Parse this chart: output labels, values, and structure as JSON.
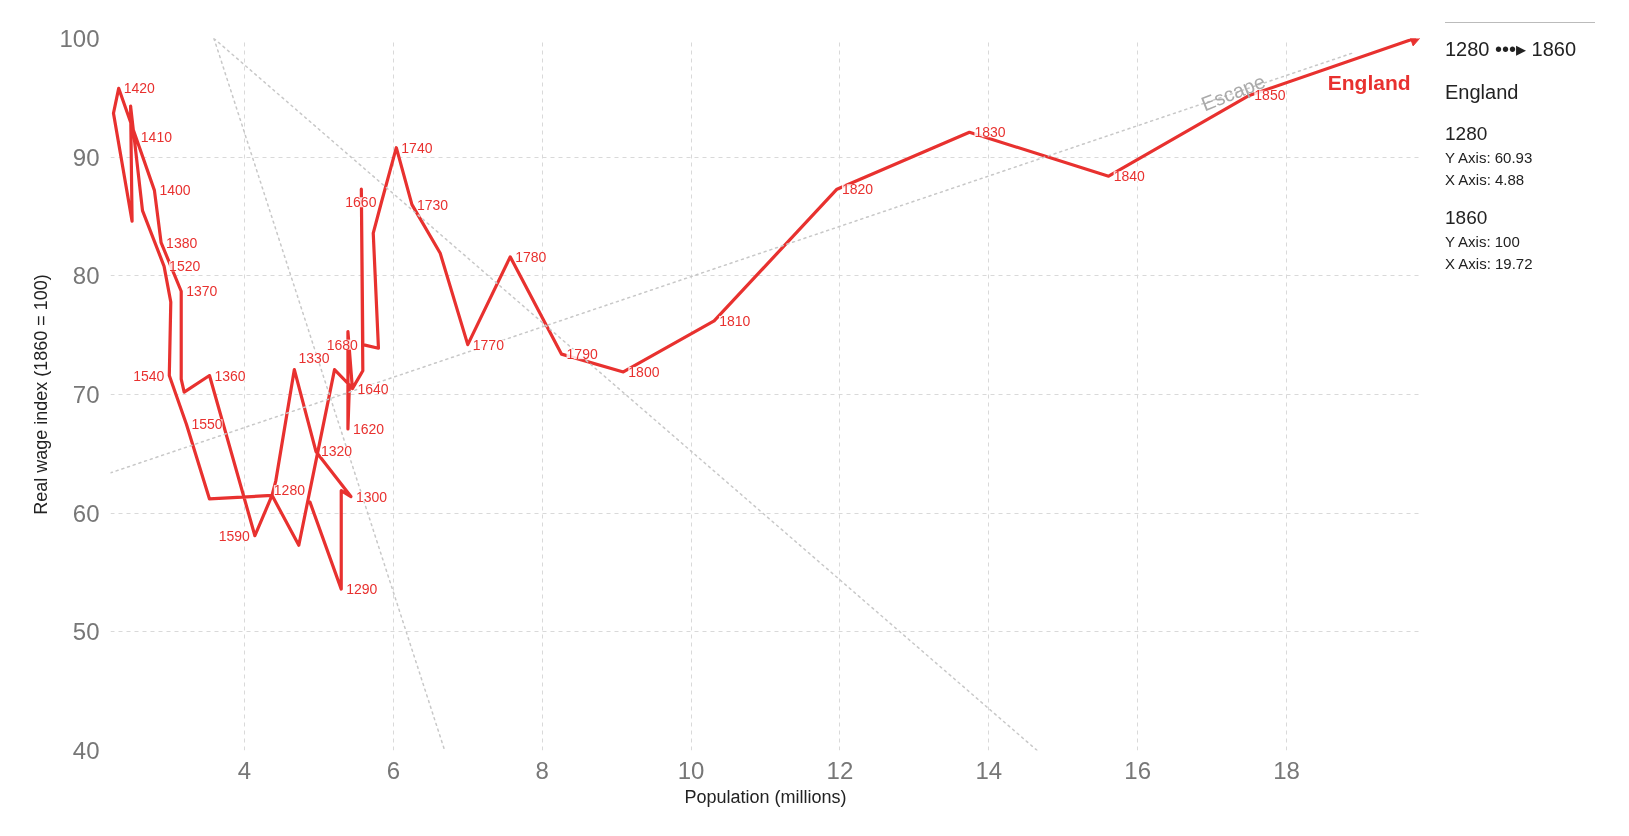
{
  "chart_data": {
    "type": "line",
    "xlabel": "Population (millions)",
    "ylabel": "Real wage index (1860 = 100)",
    "xlim": [
      2.2,
      19.8
    ],
    "ylim": [
      40,
      100
    ],
    "xticks": [
      4,
      6,
      8,
      10,
      12,
      14,
      16,
      18
    ],
    "yticks": [
      40,
      50,
      60,
      70,
      80,
      90,
      100
    ],
    "grid": true,
    "series": [
      {
        "name": "England",
        "color": "#e8312f",
        "line_style": "solid",
        "x": [
          4.88,
          5.3,
          5.3,
          5.43,
          4.96,
          4.67,
          4.42,
          4.37,
          4.14,
          3.53,
          3.19,
          3.15,
          3.15,
          2.88,
          2.79,
          2.54,
          2.31,
          2.24,
          2.49,
          2.47,
          2.63,
          2.92,
          3.01,
          2.99,
          3.22,
          3.53,
          4.37,
          4.73,
          5.21,
          5.41,
          5.39,
          5.39,
          5.45,
          5.59,
          5.57,
          5.59,
          5.8,
          5.73,
          5.84,
          6.04,
          6.25,
          6.63,
          7.0,
          7.57,
          8.26,
          9.09,
          10.31,
          11.96,
          13.74,
          15.61,
          17.5,
          19.72
        ],
        "values": [
          60.93,
          53.6,
          61.9,
          61.4,
          65.2,
          72.1,
          62.7,
          61.5,
          58.1,
          71.6,
          70.2,
          71.3,
          78.7,
          82.8,
          87.2,
          91.7,
          95.8,
          93.7,
          84.6,
          94.3,
          85.5,
          80.8,
          77.8,
          71.6,
          67.5,
          61.2,
          61.5,
          57.3,
          72.1,
          70.8,
          67.1,
          75.3,
          70.5,
          72.0,
          87.3,
          74.2,
          73.9,
          83.6,
          86.2,
          90.8,
          86.0,
          81.9,
          74.2,
          81.6,
          73.4,
          71.9,
          76.2,
          87.3,
          92.1,
          88.4,
          95.2,
          100
        ]
      },
      {
        "color": "#c8c8c8",
        "type": "line",
        "line_style": "dotted",
        "x": [
          2.2,
          18.9
        ],
        "values": [
          63.4,
          98.8
        ]
      },
      {
        "color": "#c8c8c8",
        "type": "line",
        "line_style": "dotted",
        "x": [
          3.59,
          14.65
        ],
        "values": [
          100,
          40
        ]
      },
      {
        "color": "#c8c8c8",
        "type": "line",
        "line_style": "dotted",
        "x": [
          3.59,
          6.69
        ],
        "values": [
          100,
          40
        ]
      }
    ],
    "annotations": [
      {
        "text": "1280",
        "x": 4.88,
        "y": 60.93
      },
      {
        "text": "1290",
        "x": 5.3,
        "y": 53.6
      },
      {
        "text": "1300",
        "x": 5.43,
        "y": 61.4
      },
      {
        "text": "1320",
        "x": 4.96,
        "y": 65.2
      },
      {
        "text": "1330",
        "x": 5.21,
        "y": 72.1
      },
      {
        "text": "1360",
        "x": 3.53,
        "y": 71.6
      },
      {
        "text": "1370",
        "x": 3.15,
        "y": 78.7
      },
      {
        "text": "1380",
        "x": 2.88,
        "y": 82.8
      },
      {
        "text": "1400",
        "x": 2.79,
        "y": 87.2
      },
      {
        "text": "1410",
        "x": 2.54,
        "y": 91.7
      },
      {
        "text": "1420",
        "x": 2.31,
        "y": 95.8
      },
      {
        "text": "1520",
        "x": 2.92,
        "y": 80.8
      },
      {
        "text": "1540",
        "x": 2.99,
        "y": 71.6
      },
      {
        "text": "1550",
        "x": 3.22,
        "y": 67.5
      },
      {
        "text": "1590",
        "x": 4.14,
        "y": 58.1
      },
      {
        "text": "1620",
        "x": 5.39,
        "y": 67.1
      },
      {
        "text": "1640",
        "x": 5.45,
        "y": 70.5
      },
      {
        "text": "1660",
        "x": 5.84,
        "y": 86.2
      },
      {
        "text": "1680",
        "x": 5.59,
        "y": 74.2
      },
      {
        "text": "1730",
        "x": 6.25,
        "y": 86.0
      },
      {
        "text": "1740",
        "x": 6.04,
        "y": 90.8
      },
      {
        "text": "1770",
        "x": 7.0,
        "y": 74.2
      },
      {
        "text": "1780",
        "x": 7.57,
        "y": 81.6
      },
      {
        "text": "1790",
        "x": 8.26,
        "y": 73.4
      },
      {
        "text": "1800",
        "x": 9.09,
        "y": 71.9
      },
      {
        "text": "1810",
        "x": 10.31,
        "y": 76.2
      },
      {
        "text": "1820",
        "x": 11.96,
        "y": 87.3
      },
      {
        "text": "1830",
        "x": 13.74,
        "y": 92.1
      },
      {
        "text": "1840",
        "x": 15.61,
        "y": 88.4
      },
      {
        "text": "1850",
        "x": 17.5,
        "y": 95.2
      },
      {
        "text": "Escape",
        "x": 16.8,
        "y": 94.4
      },
      "1280 •••▸ 1860",
      "England",
      "1280",
      "Y Axis: 60.93",
      "X Axis: 4.88",
      "1860",
      "Y Axis: 100",
      "X Axis: 19.72"
    ]
  }
}
